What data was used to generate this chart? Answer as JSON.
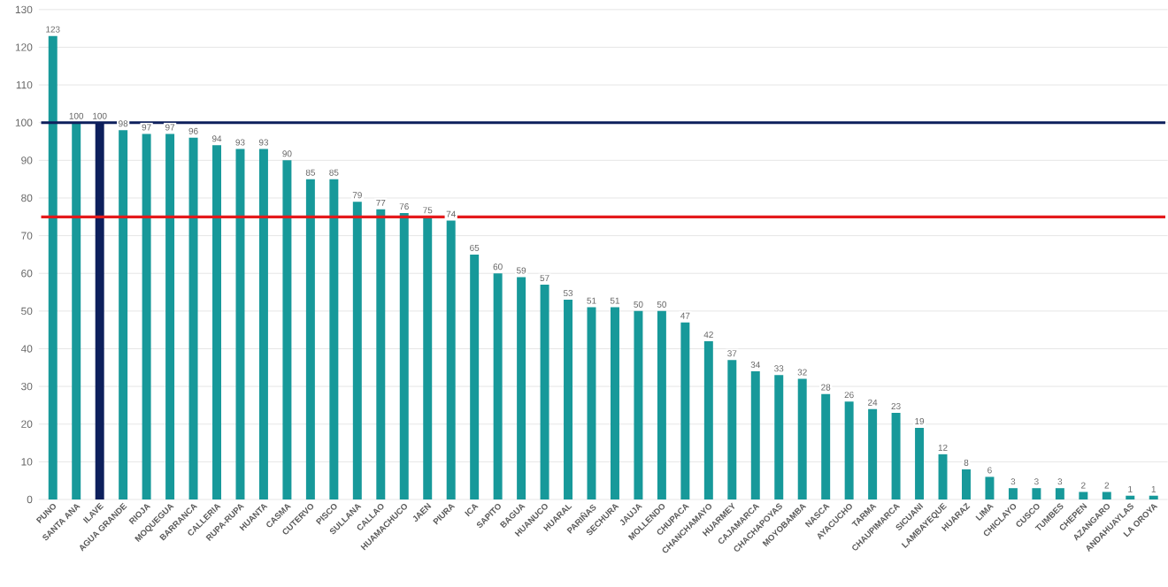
{
  "chart_data": {
    "type": "bar",
    "categories": [
      "PUNO",
      "SANTA ANA",
      "ILAVE",
      "AGUA GRANDE",
      "RIOJA",
      "MOQUEGUA",
      "BARRANCA",
      "CALLERIA",
      "RUPA-RUPA",
      "HUANTA",
      "CASMA",
      "CUTERVO",
      "PISCO",
      "SULLANA",
      "CALLAO",
      "HUAMACHUCO",
      "JAEN",
      "PIURA",
      "ICA",
      "SAPITO",
      "BAGUA",
      "HUANUCO",
      "HUARAL",
      "PARIÑAS",
      "SECHURA",
      "JAUJA",
      "MOLLENDO",
      "CHUPACA",
      "CHANCHAMAYO",
      "HUARMEY",
      "CAJAMARCA",
      "CHACHAPOYAS",
      "MOYOBAMBA",
      "NASCA",
      "AYACUCHO",
      "TARMA",
      "CHAUPIMARCA",
      "SICUANI",
      "LAMBAYEQUE",
      "HUARAZ",
      "LIMA",
      "CHICLAYO",
      "CUSCO",
      "TUMBES",
      "CHEPEN",
      "AZANGARO",
      "ANDAHUAYLAS",
      "LA OROYA"
    ],
    "values": [
      123,
      100,
      100,
      98,
      97,
      97,
      96,
      94,
      93,
      93,
      90,
      85,
      85,
      79,
      77,
      76,
      75,
      74,
      65,
      60,
      59,
      57,
      53,
      51,
      51,
      50,
      50,
      47,
      42,
      37,
      34,
      33,
      32,
      28,
      26,
      24,
      23,
      19,
      12,
      8,
      6,
      3,
      3,
      3,
      2,
      2,
      1,
      1
    ],
    "colors": [
      "#17999a",
      "#17999a",
      "#0d1f5c",
      "#17999a",
      "#17999a",
      "#17999a",
      "#17999a",
      "#17999a",
      "#17999a",
      "#17999a",
      "#17999a",
      "#17999a",
      "#17999a",
      "#17999a",
      "#17999a",
      "#17999a",
      "#17999a",
      "#17999a",
      "#17999a",
      "#17999a",
      "#17999a",
      "#17999a",
      "#17999a",
      "#17999a",
      "#17999a",
      "#17999a",
      "#17999a",
      "#17999a",
      "#17999a",
      "#17999a",
      "#17999a",
      "#17999a",
      "#17999a",
      "#17999a",
      "#17999a",
      "#17999a",
      "#17999a",
      "#17999a",
      "#17999a",
      "#17999a",
      "#17999a",
      "#17999a",
      "#17999a",
      "#17999a",
      "#17999a",
      "#17999a",
      "#17999a",
      "#17999a"
    ],
    "ylim": [
      0,
      130
    ],
    "yticks": [
      0,
      10,
      20,
      30,
      40,
      50,
      60,
      70,
      80,
      90,
      100,
      110,
      120,
      130
    ],
    "grid": "y",
    "data_labels": true,
    "ref_lines": [
      {
        "axis": "y",
        "value": 100,
        "color": "#0d1f5c"
      },
      {
        "axis": "y",
        "value": 75,
        "color": "#e41a1c"
      }
    ]
  }
}
